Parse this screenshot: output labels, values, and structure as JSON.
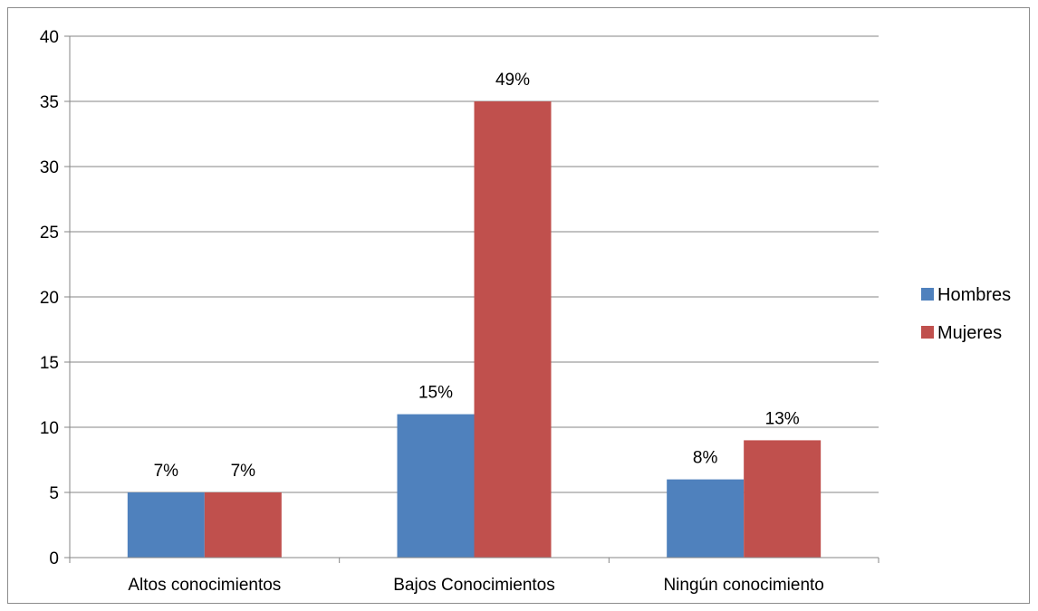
{
  "chart_data": {
    "type": "bar",
    "title": "",
    "xlabel": "",
    "ylabel": "",
    "categories": [
      "Altos conocimientos",
      "Bajos Conocimientos",
      "Ningún conocimiento"
    ],
    "series": [
      {
        "name": "Hombres",
        "values": [
          5,
          11,
          6
        ],
        "labels": [
          "7%",
          "15%",
          "8%"
        ],
        "color": "#4f81bd"
      },
      {
        "name": "Mujeres",
        "values": [
          5,
          35,
          9
        ],
        "labels": [
          "7%",
          "49%",
          "13%"
        ],
        "color": "#c0504d"
      }
    ],
    "ylim": [
      0,
      40
    ],
    "yticks": [
      "0",
      "5",
      "10",
      "15",
      "20",
      "25",
      "30",
      "35",
      "40"
    ],
    "grid": true,
    "legend": "right",
    "gridline_color": "#868686"
  }
}
